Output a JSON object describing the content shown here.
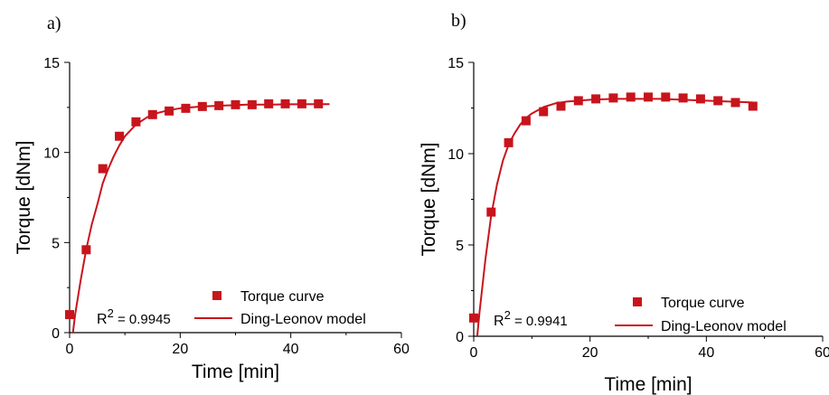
{
  "chart_data": [
    {
      "panel_label": "a)",
      "type": "scatter",
      "xlabel": "Time [min]",
      "ylabel": "Torque [dNm]",
      "xlim": [
        0,
        60
      ],
      "ylim": [
        0,
        15
      ],
      "xticks": [
        "0",
        "20",
        "40",
        "60"
      ],
      "yticks": [
        "0",
        "5",
        "10",
        "15"
      ],
      "annotation": "R² = 0.9945",
      "annotation_base": "R",
      "annotation_sup": "2",
      "annotation_rest": " = 0.9945",
      "series": [
        {
          "name": "Torque curve",
          "kind": "markers",
          "color": "#c8141c",
          "x": [
            0,
            3,
            6,
            9,
            12,
            15,
            18,
            21,
            24,
            27,
            30,
            33,
            36,
            39,
            42,
            45
          ],
          "y": [
            1.0,
            4.6,
            9.1,
            10.9,
            11.7,
            12.1,
            12.3,
            12.45,
            12.55,
            12.6,
            12.65,
            12.65,
            12.7,
            12.7,
            12.7,
            12.7
          ]
        },
        {
          "name": "Ding-Leonov model",
          "kind": "line",
          "color": "#c8141c",
          "x": [
            0.6,
            1,
            2,
            3,
            4,
            5,
            6,
            7,
            8,
            9,
            10,
            12,
            14,
            16,
            18,
            20,
            24,
            28,
            32,
            36,
            40,
            44,
            47
          ],
          "y": [
            0,
            1.0,
            2.9,
            4.6,
            6.0,
            7.1,
            8.3,
            9.1,
            9.8,
            10.4,
            10.9,
            11.55,
            11.95,
            12.2,
            12.35,
            12.45,
            12.55,
            12.6,
            12.65,
            12.65,
            12.67,
            12.68,
            12.68
          ]
        }
      ],
      "legend_position": "bottom-right"
    },
    {
      "panel_label": "b)",
      "type": "scatter",
      "xlabel": "Time [min]",
      "ylabel": "Torque [dNm]",
      "xlim": [
        0,
        60
      ],
      "ylim": [
        0,
        15
      ],
      "xticks": [
        "0",
        "20",
        "40",
        "60"
      ],
      "yticks": [
        "0",
        "5",
        "10",
        "15"
      ],
      "annotation": "R² = 0.9941",
      "annotation_base": "R",
      "annotation_sup": "2",
      "annotation_rest": " = 0.9941",
      "series": [
        {
          "name": "Torque curve",
          "kind": "markers",
          "color": "#c8141c",
          "x": [
            0,
            3,
            6,
            9,
            12,
            15,
            18,
            21,
            24,
            27,
            30,
            33,
            36,
            39,
            42,
            45,
            48
          ],
          "y": [
            1.0,
            6.8,
            10.6,
            11.8,
            12.3,
            12.6,
            12.9,
            13.0,
            13.05,
            13.1,
            13.1,
            13.1,
            13.05,
            13.0,
            12.9,
            12.8,
            12.6
          ]
        },
        {
          "name": "Ding-Leonov model",
          "kind": "line",
          "color": "#c8141c",
          "x": [
            0.6,
            1,
            2,
            3,
            4,
            5,
            6,
            7,
            8,
            9,
            10,
            12,
            14,
            16,
            18,
            20,
            24,
            28,
            32,
            36,
            40,
            44,
            48
          ],
          "y": [
            0,
            1.3,
            4.2,
            6.6,
            8.3,
            9.6,
            10.5,
            11.1,
            11.6,
            11.95,
            12.2,
            12.55,
            12.75,
            12.85,
            12.9,
            12.95,
            13.0,
            13.0,
            13.0,
            12.95,
            12.9,
            12.85,
            12.8
          ]
        }
      ],
      "legend_position": "bottom-right"
    }
  ]
}
